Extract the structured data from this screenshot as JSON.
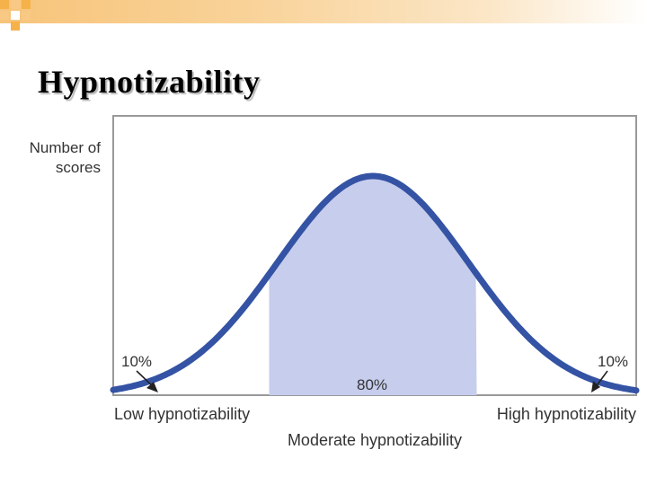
{
  "slide": {
    "title": "Hypnotizability",
    "accent_colors": {
      "top_bar": "#f7c47a",
      "curve": "#3453a4",
      "fill": "#c7cdec"
    }
  },
  "chart_data": {
    "type": "area",
    "title": "Hypnotizability",
    "ylabel": [
      "Number of",
      "scores"
    ],
    "xlabels": {
      "low": "Low hypnotizability",
      "moderate": "Moderate hypnotizability",
      "high": "High hypnotizability"
    },
    "distribution": "normal",
    "regions": [
      {
        "name": "Low hypnotizability",
        "percent": 10,
        "label": "10%",
        "shaded": false
      },
      {
        "name": "Moderate hypnotizability",
        "percent": 80,
        "label": "80%",
        "shaded": true
      },
      {
        "name": "High hypnotizability",
        "percent": 10,
        "label": "10%",
        "shaded": false
      }
    ],
    "grid": false,
    "legend": "none"
  }
}
